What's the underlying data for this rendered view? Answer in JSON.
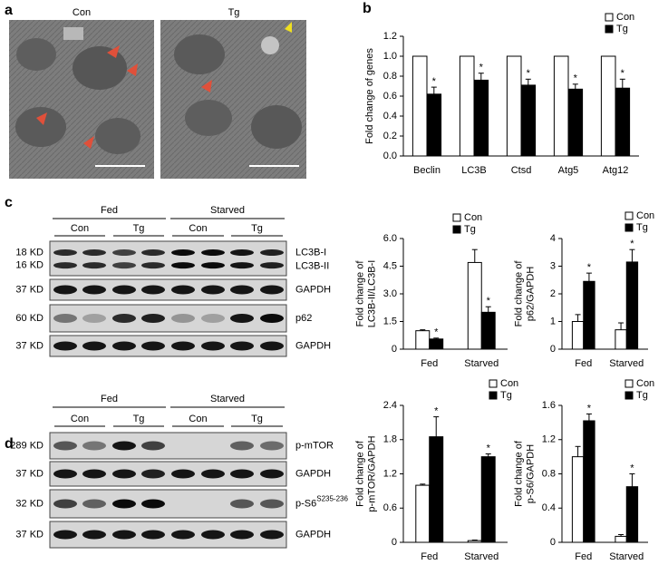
{
  "panels": [
    "a",
    "b",
    "c",
    "d"
  ],
  "micrographs": {
    "labels": [
      "Con",
      "Tg"
    ]
  },
  "blots": [
    {
      "groups": [
        "Fed",
        "Starved"
      ],
      "subgroups": [
        "Con",
        "Tg",
        "Con",
        "Tg"
      ],
      "rows": [
        {
          "sizes": [
            "18 KD",
            "16 KD"
          ],
          "proteins": [
            "LC3B-I",
            "LC3B-II"
          ]
        },
        {
          "sizes": [
            "37 KD"
          ],
          "proteins": [
            "GAPDH"
          ]
        },
        {
          "sizes": [
            "60 KD"
          ],
          "proteins": [
            "p62"
          ]
        },
        {
          "sizes": [
            "37 KD"
          ],
          "proteins": [
            "GAPDH"
          ]
        }
      ]
    },
    {
      "groups": [
        "Fed",
        "Starved"
      ],
      "subgroups": [
        "Con",
        "Tg",
        "Con",
        "Tg"
      ],
      "rows": [
        {
          "sizes": [
            "289 KD"
          ],
          "proteins": [
            "p-mTOR"
          ]
        },
        {
          "sizes": [
            "37 KD"
          ],
          "proteins": [
            "GAPDH"
          ]
        },
        {
          "sizes": [
            "32 KD"
          ],
          "proteins": [
            "p-S6"
          ],
          "superscript": "S235-236"
        },
        {
          "sizes": [
            "37 KD"
          ],
          "proteins": [
            "GAPDH"
          ]
        }
      ]
    }
  ],
  "chart_data": [
    {
      "type": "bar",
      "ylabel": [
        "Fold change of  genes"
      ],
      "categories": [
        "Beclin",
        "LC3B",
        "Ctsd",
        "Atg5",
        "Atg12"
      ],
      "series": [
        {
          "name": "Con",
          "color": "#ffffff",
          "values": [
            1.0,
            1.0,
            1.0,
            1.0,
            1.0
          ]
        },
        {
          "name": "Tg",
          "color": "#000000",
          "values": [
            0.62,
            0.76,
            0.71,
            0.67,
            0.68
          ],
          "errors": [
            0.07,
            0.07,
            0.06,
            0.05,
            0.09
          ],
          "markers": [
            "*",
            "*",
            "*",
            "*",
            "*"
          ]
        }
      ],
      "ylim": [
        0,
        1.2
      ],
      "yticks": [
        {
          "value": 0,
          "label": "0.0"
        },
        0.2,
        0.4,
        0.6,
        0.8,
        {
          "value": 1,
          "label": "1.0"
        },
        1.2
      ]
    },
    {
      "type": "bar",
      "ylabel": [
        "Fold change of",
        "LC3B-II/LC3B-I"
      ],
      "categories": [
        "Fed",
        "Starved"
      ],
      "series": [
        {
          "name": "Con",
          "color": "#ffffff",
          "values": [
            1.0,
            4.7
          ],
          "errors": [
            0.05,
            0.7
          ]
        },
        {
          "name": "Tg",
          "color": "#000000",
          "values": [
            0.55,
            2.0
          ],
          "errors": [
            0.05,
            0.3
          ],
          "markers": [
            "*",
            "*"
          ]
        }
      ],
      "ylim": [
        0,
        6
      ],
      "yticks": [
        0,
        1.5,
        {
          "value": 3,
          "label": "3.0"
        },
        4.5,
        {
          "value": 6,
          "label": "6.0"
        }
      ]
    },
    {
      "type": "bar",
      "ylabel": [
        "Fold change of",
        "p62/GAPDH"
      ],
      "categories": [
        "Fed",
        "Starved"
      ],
      "series": [
        {
          "name": "Con",
          "color": "#ffffff",
          "values": [
            1.0,
            0.7
          ],
          "errors": [
            0.25,
            0.25
          ]
        },
        {
          "name": "Tg",
          "color": "#000000",
          "values": [
            2.45,
            3.15
          ],
          "errors": [
            0.3,
            0.45
          ],
          "markers": [
            "*",
            "*"
          ]
        }
      ],
      "ylim": [
        0,
        4
      ],
      "yticks": [
        0,
        1,
        2,
        3,
        4
      ]
    },
    {
      "type": "bar",
      "ylabel": [
        "Fold change of",
        "p-mTOR/GAPDH"
      ],
      "categories": [
        "Fed",
        "Starved"
      ],
      "series": [
        {
          "name": "Con",
          "color": "#ffffff",
          "values": [
            1.0,
            0.03
          ],
          "errors": [
            0.02,
            0.01
          ]
        },
        {
          "name": "Tg",
          "color": "#000000",
          "values": [
            1.85,
            1.5
          ],
          "errors": [
            0.35,
            0.05
          ],
          "markers": [
            "*",
            "*"
          ]
        }
      ],
      "ylim": [
        0,
        2.4
      ],
      "yticks": [
        0,
        0.6,
        1.2,
        1.8,
        2.4
      ]
    },
    {
      "type": "bar",
      "ylabel": [
        "Fold change of",
        "p-S6/GAPDH"
      ],
      "categories": [
        "Fed",
        "Starved"
      ],
      "series": [
        {
          "name": "Con",
          "color": "#ffffff",
          "values": [
            1.0,
            0.07
          ],
          "errors": [
            0.12,
            0.02
          ]
        },
        {
          "name": "Tg",
          "color": "#000000",
          "values": [
            1.42,
            0.65
          ],
          "errors": [
            0.08,
            0.15
          ],
          "markers": [
            "*",
            "*"
          ]
        }
      ],
      "ylim": [
        0,
        1.6
      ],
      "yticks": [
        0,
        0.4,
        0.8,
        1.2,
        1.6
      ]
    }
  ]
}
